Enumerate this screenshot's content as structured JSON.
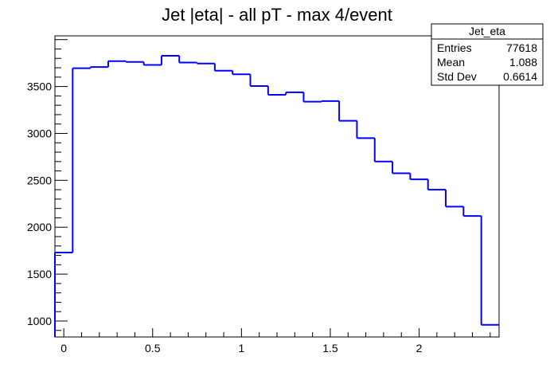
{
  "chart_data": {
    "type": "histogram",
    "title": "Jet |eta| - all pT - max 4/event",
    "xlabel": "",
    "ylabel": "",
    "xlim": [
      -0.05,
      2.45
    ],
    "ylim": [
      830,
      4040
    ],
    "grid": false,
    "line_color": "#0000ff",
    "bin_edges": [
      -0.05,
      0.05,
      0.15,
      0.25,
      0.35,
      0.45,
      0.55,
      0.65,
      0.75,
      0.85,
      0.95,
      1.05,
      1.15,
      1.25,
      1.35,
      1.45,
      1.55,
      1.65,
      1.75,
      1.85,
      1.95,
      2.05,
      2.15,
      2.25,
      2.35,
      2.45
    ],
    "values": [
      1730,
      3695,
      3708,
      3770,
      3762,
      3730,
      3828,
      3755,
      3745,
      3668,
      3630,
      3505,
      3412,
      3438,
      3338,
      3345,
      3135,
      2950,
      2700,
      2575,
      2510,
      2400,
      2220,
      2120,
      960
    ],
    "x_ticks": [
      {
        "value": 0,
        "label": "0"
      },
      {
        "value": 0.5,
        "label": "0.5"
      },
      {
        "value": 1,
        "label": "1"
      },
      {
        "value": 1.5,
        "label": "1.5"
      },
      {
        "value": 2,
        "label": "2"
      }
    ],
    "y_ticks": [
      {
        "value": 1000,
        "label": "1000"
      },
      {
        "value": 1500,
        "label": "1500"
      },
      {
        "value": 2000,
        "label": "2000"
      },
      {
        "value": 2500,
        "label": "2500"
      },
      {
        "value": 3000,
        "label": "3000"
      },
      {
        "value": 3500,
        "label": "3500"
      }
    ],
    "stats_box": {
      "name": "Jet_eta",
      "position": "top-right",
      "rows": [
        {
          "label": "Entries",
          "value": "77618"
        },
        {
          "label": "Mean",
          "value": "1.088"
        },
        {
          "label": "Std Dev",
          "value": "0.6614"
        }
      ]
    }
  }
}
